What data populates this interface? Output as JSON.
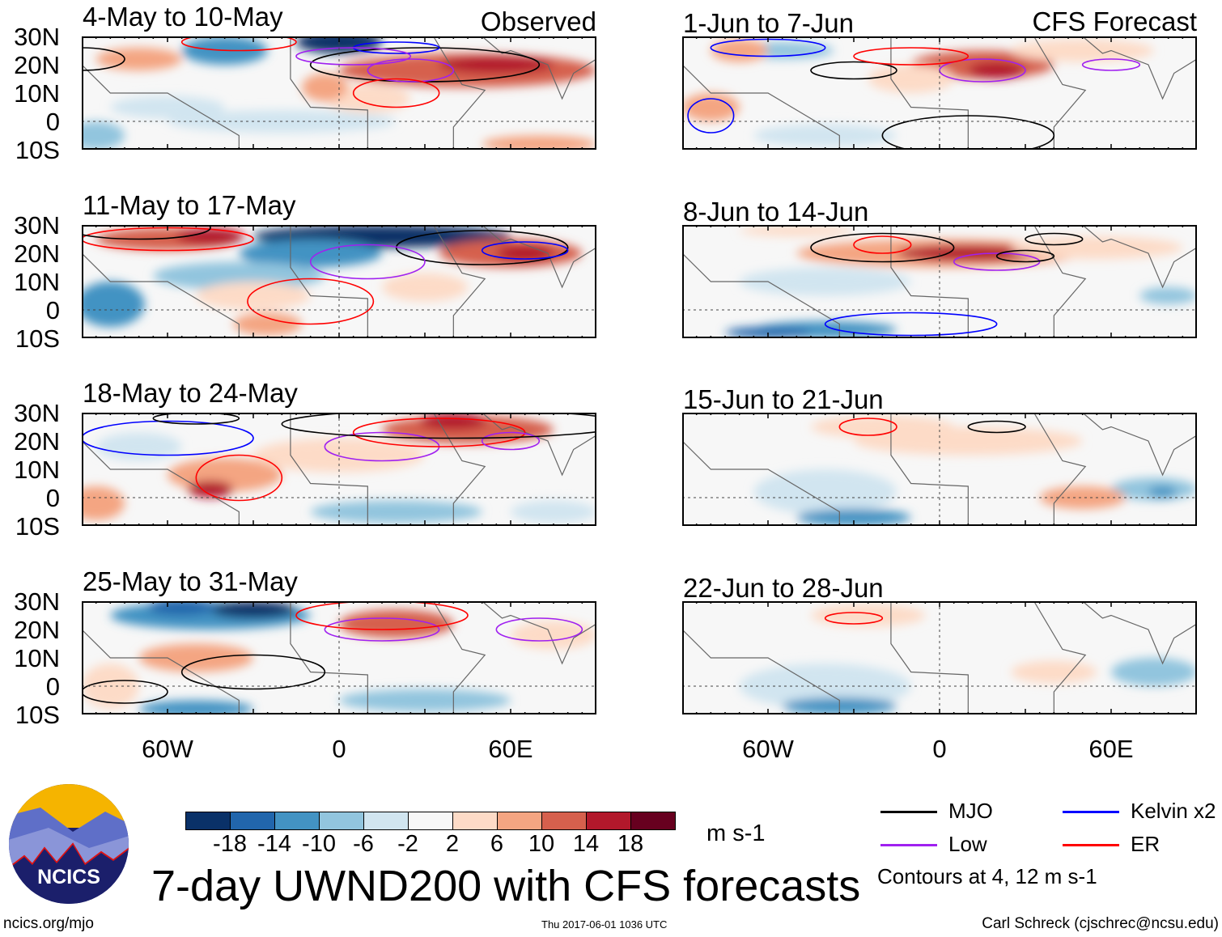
{
  "chart_data": {
    "type": "heatmap",
    "title": "7-day UWND200 with CFS forecasts",
    "units": "m s-1",
    "variable": "200 hPa zonal wind anomaly",
    "columns": [
      {
        "heading": "Observed",
        "panels": [
          "4-May to 10-May",
          "11-May to 17-May",
          "18-May to 24-May",
          "25-May to 31-May"
        ]
      },
      {
        "heading": "CFS Forecast",
        "panels": [
          "1-Jun to 7-Jun",
          "8-Jun to 14-Jun",
          "15-Jun to 21-Jun",
          "22-Jun to 28-Jun"
        ]
      }
    ],
    "lat_ticks": [
      "30N",
      "20N",
      "10N",
      "0",
      "10S"
    ],
    "lat_range": [
      -10,
      30
    ],
    "lon_ticks": [
      "60W",
      "0",
      "60E"
    ],
    "lon_range": [
      -90,
      90
    ],
    "colorbar": {
      "levels": [
        "-18",
        "-14",
        "-10",
        "-6",
        "-2",
        "2",
        "6",
        "10",
        "14",
        "18"
      ],
      "colors": [
        "#0a3168",
        "#2166ac",
        "#4393c3",
        "#92c5de",
        "#d1e5f0",
        "#f7f7f7",
        "#fddbc7",
        "#f4a582",
        "#d6604d",
        "#b2182b",
        "#67001f"
      ]
    },
    "legend": [
      {
        "label": "MJO",
        "color": "#000000"
      },
      {
        "label": "Kelvin x2",
        "color": "#0000ff"
      },
      {
        "label": "Low",
        "color": "#a020f0"
      },
      {
        "label": "ER",
        "color": "#ff0000"
      }
    ],
    "contour_note": "Contours at 4, 12 m s-1"
  },
  "footer": {
    "logo_text": "NCICS",
    "url": "ncics.org/mjo",
    "timestamp": "Thu 2017-06-01 1036 UTC",
    "author": "Carl Schreck (cjschrec@ncsu.edu)"
  }
}
